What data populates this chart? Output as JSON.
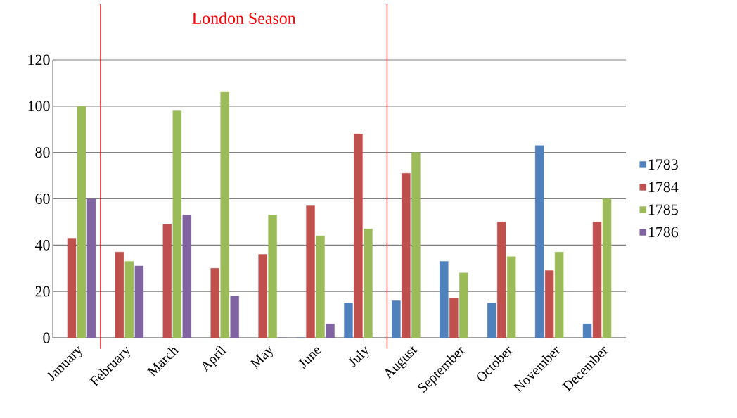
{
  "chart_data": {
    "type": "bar",
    "categories": [
      "January",
      "February",
      "March",
      "April",
      "May",
      "June",
      "July",
      "August",
      "September",
      "October",
      "November",
      "December"
    ],
    "series": [
      {
        "name": "1783",
        "color": "#4f81bd",
        "values": [
          null,
          null,
          null,
          null,
          null,
          0,
          15,
          16,
          33,
          15,
          83,
          6
        ]
      },
      {
        "name": "1784",
        "color": "#c0504d",
        "values": [
          43,
          37,
          49,
          30,
          36,
          57,
          88,
          71,
          17,
          50,
          29,
          50
        ]
      },
      {
        "name": "1785",
        "color": "#9bbb59",
        "values": [
          100,
          33,
          98,
          106,
          53,
          44,
          47,
          80,
          28,
          35,
          37,
          60
        ]
      },
      {
        "name": "1786",
        "color": "#8064a2",
        "values": [
          60,
          31,
          53,
          18,
          0,
          6,
          null,
          null,
          null,
          null,
          null,
          null
        ]
      }
    ],
    "ylim": [
      0,
      120
    ],
    "yticks": [
      0,
      20,
      40,
      60,
      80,
      100,
      120
    ],
    "grid": "y",
    "legend": "right",
    "annotations": [
      "London Season"
    ]
  }
}
